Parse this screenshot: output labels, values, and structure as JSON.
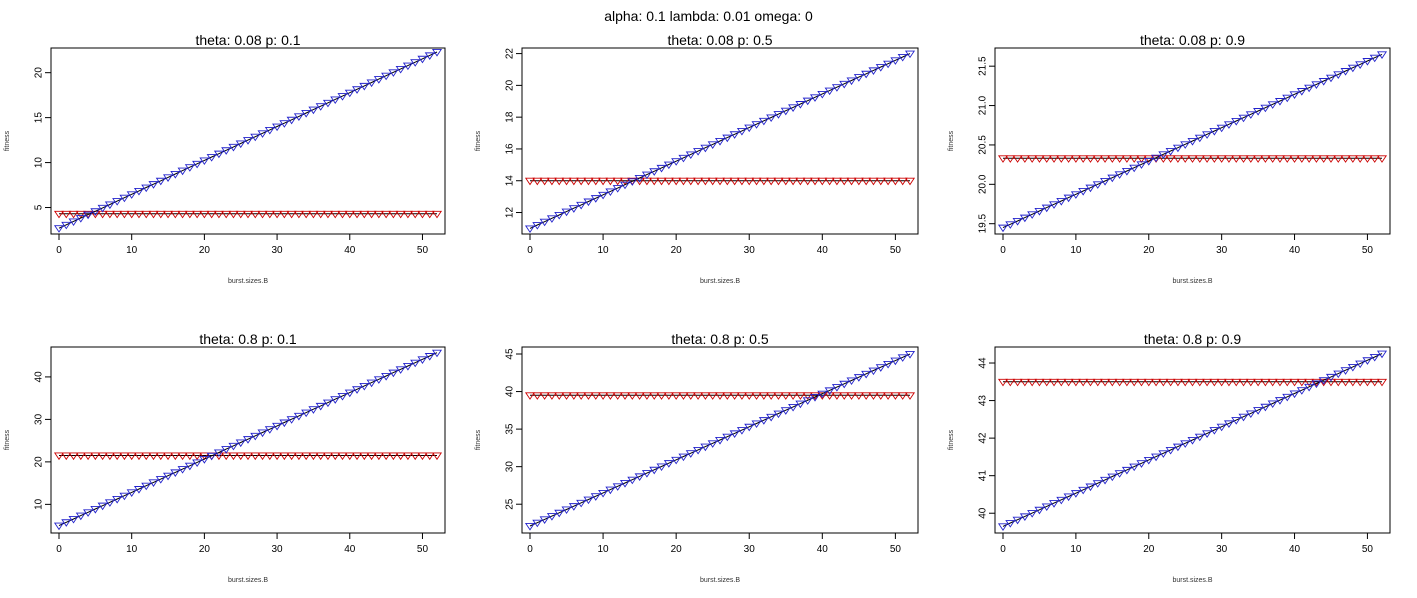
{
  "main_title": "alpha: 0.1 lambda: 0.01 omega: 0",
  "colors": {
    "line": "#000000",
    "flat_series": "#cc0000",
    "rising_series": "#2222cc",
    "frame": "#000000"
  },
  "chart_data": [
    {
      "type": "line",
      "title": "theta: 0.08 p: 0.1",
      "xlabel": "burst.sizes.B",
      "ylabel": "fitness",
      "xlim": [
        0,
        52
      ],
      "ylim": [
        2.5,
        22.3
      ],
      "xticks": [
        0,
        10,
        20,
        30,
        40,
        50
      ],
      "yticks": [
        5,
        10,
        15,
        20
      ],
      "series": [
        {
          "start": [
            0,
            2.7
          ],
          "end": [
            52,
            22.3
          ],
          "marker": "triangle-down",
          "color": "#2222cc"
        },
        {
          "start": [
            0,
            4.3
          ],
          "end": [
            52,
            4.3
          ],
          "marker": "triangle-down",
          "color": "#cc0000"
        }
      ]
    },
    {
      "type": "line",
      "title": "theta: 0.08 p: 0.5",
      "xlabel": "burst.sizes.B",
      "ylabel": "fitness",
      "xlim": [
        0,
        52
      ],
      "ylim": [
        10.9,
        22.1
      ],
      "xticks": [
        0,
        10,
        20,
        30,
        40,
        50
      ],
      "yticks": [
        12,
        14,
        16,
        18,
        20,
        22
      ],
      "series": [
        {
          "start": [
            0,
            11.0
          ],
          "end": [
            52,
            22.0
          ],
          "marker": "triangle-down",
          "color": "#2222cc"
        },
        {
          "start": [
            0,
            14.0
          ],
          "end": [
            52,
            14.0
          ],
          "marker": "triangle-down",
          "color": "#cc0000"
        }
      ]
    },
    {
      "type": "line",
      "title": "theta: 0.08 p: 0.9",
      "xlabel": "burst.sizes.B",
      "ylabel": "fitness",
      "xlim": [
        0,
        52
      ],
      "ylim": [
        19.42,
        21.68
      ],
      "xticks": [
        0,
        10,
        20,
        30,
        40,
        50
      ],
      "yticks": [
        "19.5",
        "20.0",
        "20.5",
        "21.0",
        "21.5"
      ],
      "series": [
        {
          "start": [
            0,
            19.45
          ],
          "end": [
            52,
            21.65
          ],
          "marker": "triangle-down",
          "color": "#2222cc"
        },
        {
          "start": [
            0,
            20.33
          ],
          "end": [
            52,
            20.33
          ],
          "marker": "triangle-down",
          "color": "#cc0000"
        }
      ]
    },
    {
      "type": "line",
      "title": "theta: 0.8 p: 0.1",
      "xlabel": "burst.sizes.B",
      "ylabel": "fitness",
      "xlim": [
        0,
        52
      ],
      "ylim": [
        4.2,
        46.1
      ],
      "xticks": [
        0,
        10,
        20,
        30,
        40,
        50
      ],
      "yticks": [
        10,
        20,
        30,
        40
      ],
      "series": [
        {
          "start": [
            0,
            5.0
          ],
          "end": [
            52,
            45.7
          ],
          "marker": "triangle-down",
          "color": "#2222cc"
        },
        {
          "start": [
            0,
            21.5
          ],
          "end": [
            52,
            21.5
          ],
          "marker": "triangle-down",
          "color": "#cc0000"
        }
      ]
    },
    {
      "type": "line",
      "title": "theta: 0.8 p: 0.5",
      "xlabel": "burst.sizes.B",
      "ylabel": "fitness",
      "xlim": [
        0,
        52
      ],
      "ylim": [
        21.7,
        45.4
      ],
      "xticks": [
        0,
        10,
        20,
        30,
        40,
        50
      ],
      "yticks": [
        25,
        30,
        35,
        40,
        45
      ],
      "series": [
        {
          "start": [
            0,
            22.1
          ],
          "end": [
            52,
            45.0
          ],
          "marker": "triangle-down",
          "color": "#2222cc"
        },
        {
          "start": [
            0,
            39.5
          ],
          "end": [
            52,
            39.5
          ],
          "marker": "triangle-down",
          "color": "#cc0000"
        }
      ]
    },
    {
      "type": "line",
      "title": "theta: 0.8 p: 0.9",
      "xlabel": "burst.sizes.B",
      "ylabel": "fitness",
      "xlim": [
        0,
        52
      ],
      "ylim": [
        39.58,
        44.32
      ],
      "xticks": [
        0,
        10,
        20,
        30,
        40,
        50
      ],
      "yticks": [
        40,
        41,
        42,
        43,
        44
      ],
      "series": [
        {
          "start": [
            0,
            39.65
          ],
          "end": [
            52,
            44.25
          ],
          "marker": "triangle-down",
          "color": "#2222cc"
        },
        {
          "start": [
            0,
            43.5
          ],
          "end": [
            52,
            43.5
          ],
          "marker": "triangle-down",
          "color": "#cc0000"
        }
      ]
    }
  ]
}
